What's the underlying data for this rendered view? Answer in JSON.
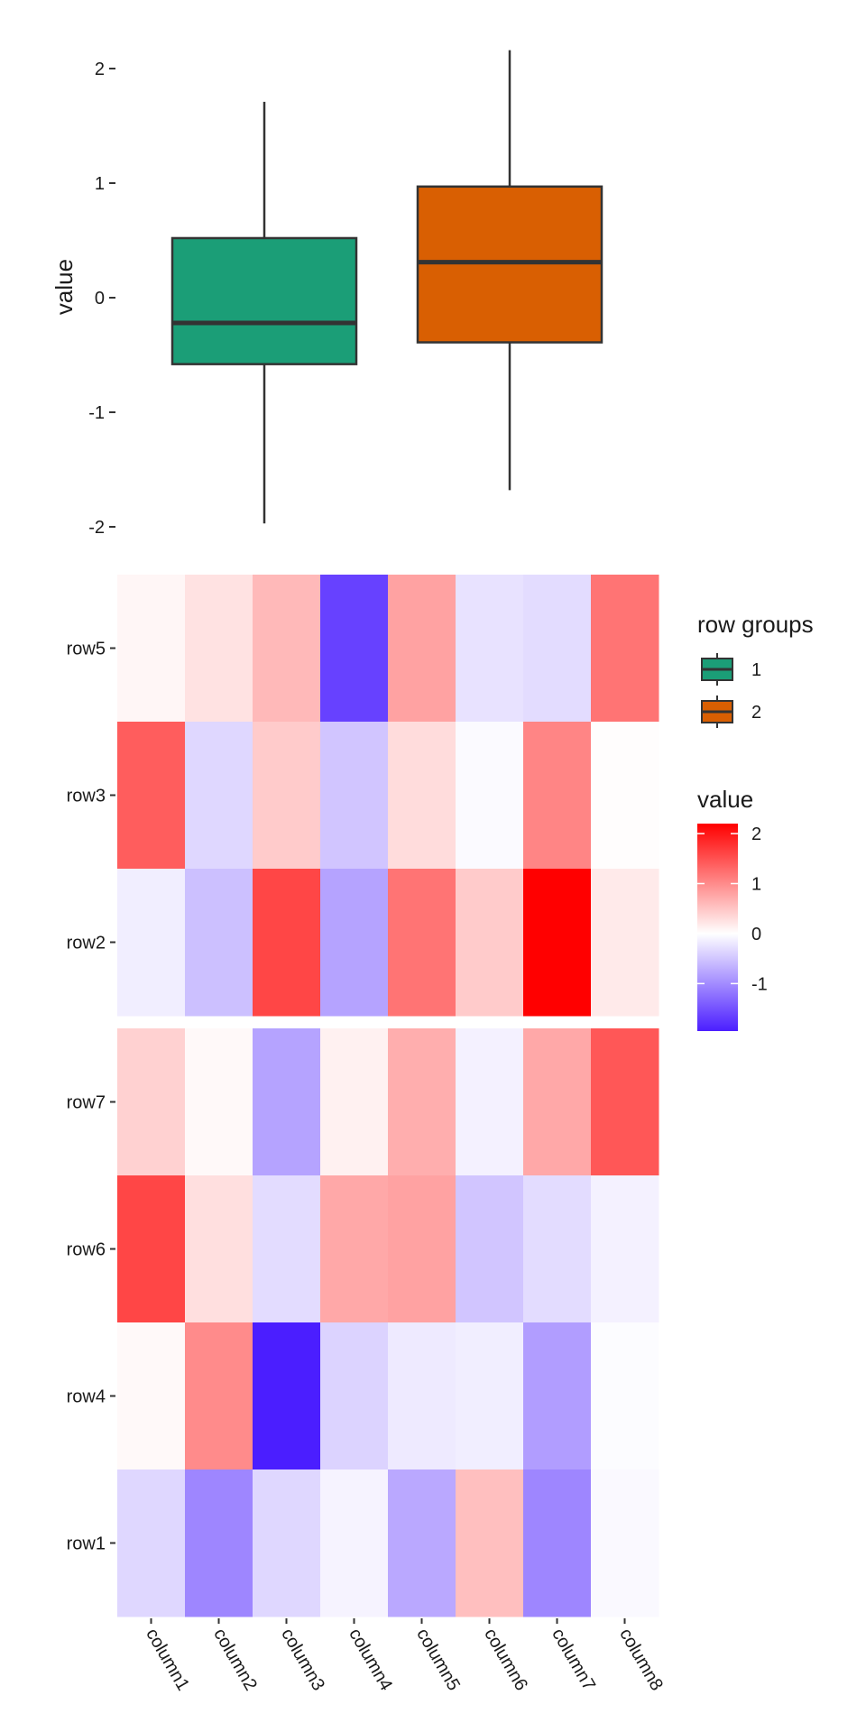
{
  "chart_data": [
    {
      "type": "box",
      "ylabel": "value",
      "ylim": [
        -2.05,
        2.25
      ],
      "yticks": [
        2,
        1,
        0,
        -1,
        -2
      ],
      "ytick_labels": [
        "2",
        "1",
        "0",
        "-1",
        "-2"
      ],
      "series": [
        {
          "name": "1",
          "color": "#1B9E77",
          "min": -1.97,
          "q1": -0.58,
          "median": -0.22,
          "q3": 0.52,
          "max": 1.71
        },
        {
          "name": "2",
          "color": "#D95F02",
          "min": -1.68,
          "q1": -0.39,
          "median": 0.31,
          "q3": 0.97,
          "max": 2.16
        }
      ]
    },
    {
      "type": "heatmap",
      "columns": [
        "column1",
        "column2",
        "column3",
        "column4",
        "column5",
        "column6",
        "column7",
        "column8"
      ],
      "row_groups": [
        {
          "rows": [
            "row5",
            "row3",
            "row2"
          ]
        },
        {
          "rows": [
            "row7",
            "row6",
            "row4",
            "row1"
          ]
        }
      ],
      "values": {
        "row5": [
          0.08,
          0.25,
          0.6,
          -1.65,
          0.8,
          -0.25,
          -0.3,
          1.2
        ],
        "row3": [
          1.4,
          -0.35,
          0.45,
          -0.5,
          0.3,
          -0.04,
          1.05,
          0.02
        ],
        "row2": [
          -0.15,
          -0.55,
          1.6,
          -0.8,
          1.2,
          0.45,
          2.2,
          0.18
        ],
        "row7": [
          0.4,
          0.05,
          -0.8,
          0.12,
          0.7,
          -0.12,
          0.75,
          1.45
        ],
        "row6": [
          1.6,
          0.28,
          -0.3,
          0.75,
          0.8,
          -0.5,
          -0.3,
          -0.12
        ],
        "row4": [
          0.05,
          1.0,
          -1.95,
          -0.38,
          -0.18,
          -0.15,
          -0.85,
          -0.03
        ],
        "row1": [
          -0.35,
          -1.05,
          -0.35,
          -0.1,
          -0.75,
          0.55,
          -1.05,
          -0.05
        ]
      },
      "color_scale": {
        "low": "#4B1EFF",
        "mid": "#FFFFFF",
        "high": "#FF0000",
        "limits": [
          -1.95,
          2.2
        ]
      }
    }
  ],
  "legends": {
    "groups": {
      "title": "row groups",
      "items": [
        {
          "label": "1",
          "color": "#1B9E77"
        },
        {
          "label": "2",
          "color": "#D95F02"
        }
      ]
    },
    "value": {
      "title": "value",
      "ticks": [
        2,
        1,
        0,
        -1
      ],
      "tick_labels": [
        "2",
        "1",
        "0",
        "-1"
      ]
    }
  }
}
